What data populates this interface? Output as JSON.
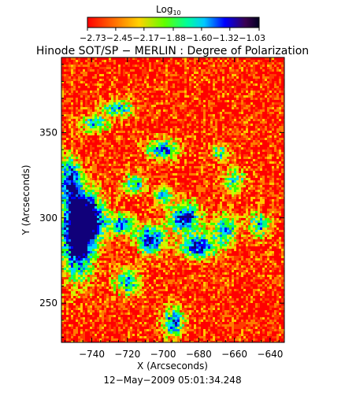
{
  "chart_data": {
    "type": "heatmap",
    "title": "Hinode SOT/SP − MERLIN : Degree of Polarization",
    "xlabel": "X (Arcseconds)",
    "ylabel": "Y (Arcseconds)",
    "date_label": "12−May−2009 05:01:34.248",
    "xlim": [
      -757,
      -632
    ],
    "ylim": [
      227,
      394
    ],
    "x_ticks": [
      -740,
      -720,
      -700,
      -680,
      -660,
      -640
    ],
    "x_tick_labels": [
      "−740",
      "−720",
      "−700",
      "−680",
      "−660",
      "−640"
    ],
    "y_ticks": [
      250,
      300,
      350
    ],
    "y_tick_labels": [
      "250",
      "300",
      "350"
    ],
    "colorbar": {
      "label": "Log",
      "label_subscript": "10",
      "range": [
        -2.73,
        -1.03
      ],
      "tick_values": [
        -2.73,
        -2.45,
        -2.17,
        -1.88,
        -1.6,
        -1.32,
        -1.03
      ],
      "tick_labels_text": "−2.73−2.45−2.17−1.88−1.60−1.32−1.03",
      "colormap": [
        "#ff0000",
        "#ff8a00",
        "#ffff00",
        "#00ff00",
        "#00ffff",
        "#0000ff",
        "#000033"
      ]
    },
    "field_description_values": {
      "background_level": -2.6,
      "strong_patch_level": -1.5
    }
  }
}
